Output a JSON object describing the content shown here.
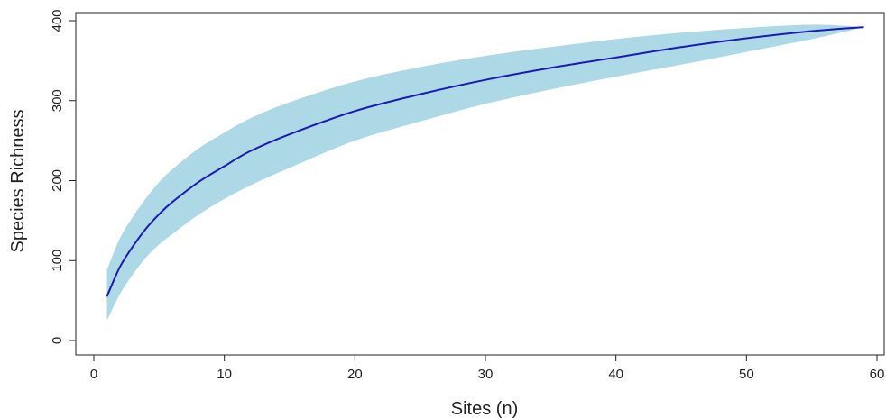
{
  "chart_data": {
    "type": "area",
    "title": "",
    "xlabel": "Sites (n)",
    "ylabel": "Species Richness",
    "xlim": [
      0,
      60
    ],
    "ylim": [
      0,
      400
    ],
    "x_ticks": [
      0,
      10,
      20,
      30,
      40,
      50,
      60
    ],
    "y_ticks": [
      0,
      100,
      200,
      300,
      400
    ],
    "x_tick_labels": [
      "0",
      "10",
      "20",
      "30",
      "40",
      "50",
      "60"
    ],
    "y_tick_labels": [
      "0",
      "100",
      "200",
      "300",
      "400"
    ],
    "grid": false,
    "line_color": "#1b1bb4",
    "band_color": "#add8e6",
    "series": [
      {
        "type": "line",
        "x": [
          1,
          2,
          3,
          4,
          5,
          6,
          8,
          10,
          12,
          15,
          20,
          25,
          30,
          35,
          40,
          45,
          50,
          55,
          59
        ],
        "y": [
          55,
          92,
          118,
          140,
          158,
          173,
          198,
          218,
          237,
          258,
          287,
          308,
          326,
          341,
          354,
          367,
          378,
          387,
          392
        ]
      },
      {
        "type": "band",
        "x": [
          1,
          2,
          3,
          4,
          5,
          6,
          8,
          10,
          12,
          15,
          20,
          25,
          30,
          35,
          40,
          45,
          50,
          55,
          59
        ],
        "upper": [
          88,
          128,
          155,
          178,
          198,
          214,
          240,
          260,
          278,
          298,
          324,
          342,
          356,
          367,
          377,
          385,
          391,
          395,
          392
        ],
        "lower": [
          25,
          58,
          83,
          104,
          120,
          133,
          157,
          177,
          194,
          216,
          250,
          274,
          296,
          314,
          330,
          345,
          361,
          377,
          392
        ]
      }
    ]
  }
}
